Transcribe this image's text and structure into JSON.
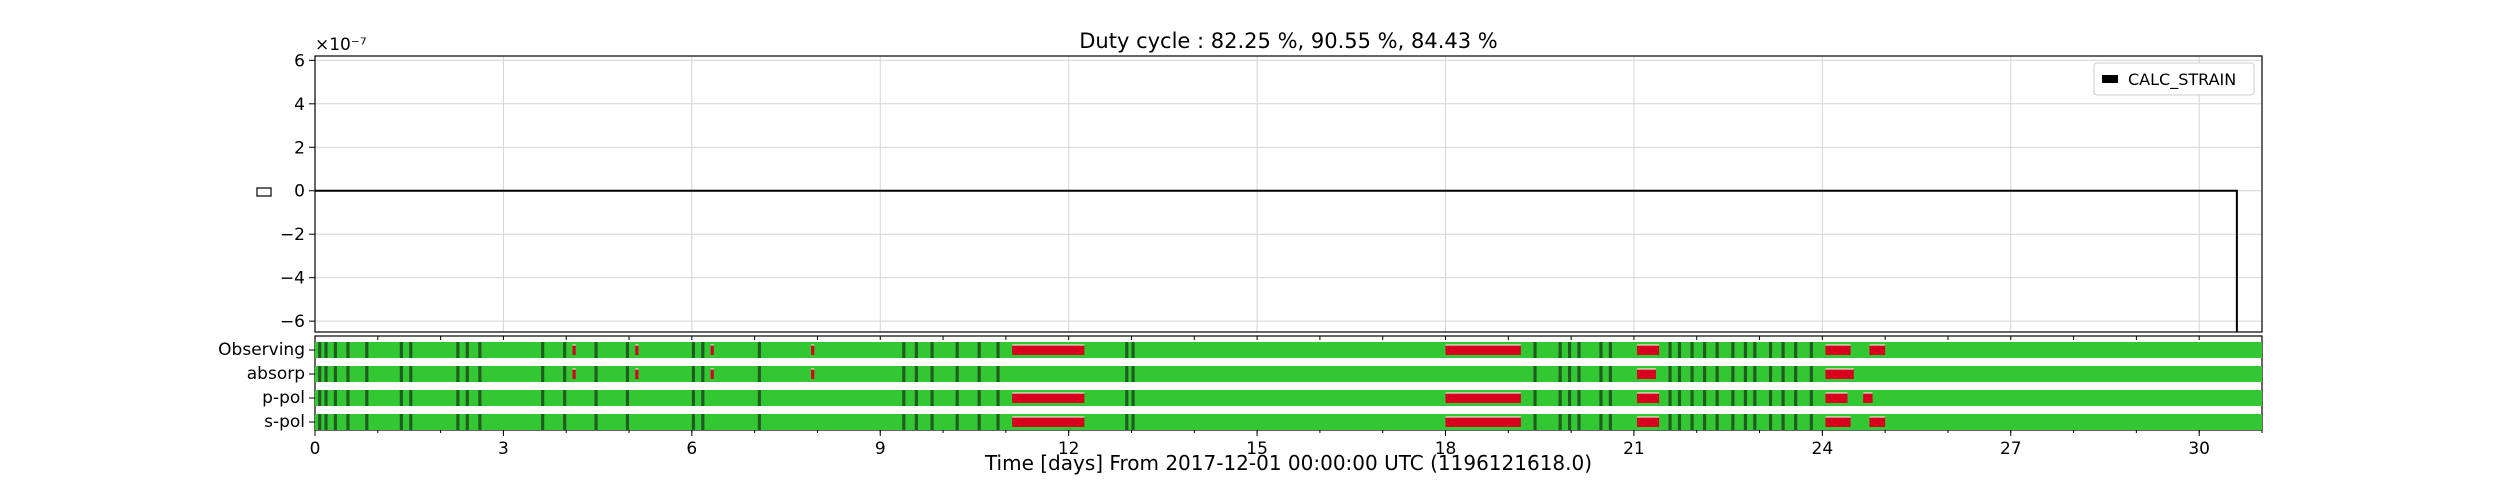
{
  "chart_data": {
    "type": "line",
    "title": "Duty cycle : 82.25 %, 90.55 %, 84.43 %",
    "xlabel": "Time [days] From 2017-12-01 00:00:00 UTC (1196121618.0)",
    "ylabel": "",
    "y_multiplier": "×10⁻⁷",
    "xlim": [
      0,
      31
    ],
    "ylim": [
      -6.5,
      6.2
    ],
    "x_ticks": [
      0,
      3,
      6,
      9,
      12,
      15,
      18,
      21,
      24,
      27,
      30
    ],
    "y_ticks": [
      -6,
      -4,
      -2,
      0,
      2,
      4,
      6
    ],
    "y_tick_labels": [
      "−6",
      "−4",
      "−2",
      "0",
      "2",
      "4",
      "6"
    ],
    "grid": true,
    "legend": {
      "placement": "top-right",
      "entries": [
        "CALC_STRAIN"
      ]
    },
    "series": [
      {
        "name": "CALC_STRAIN",
        "color": "#000000",
        "x": [
          0,
          30.6,
          30.6
        ],
        "y": [
          0,
          0,
          -6.5
        ]
      }
    ],
    "segment_rows": [
      {
        "label": "Observing",
        "bad": [
          [
            4.1,
            4.15
          ],
          [
            5.1,
            5.15
          ],
          [
            6.3,
            6.35
          ],
          [
            7.9,
            7.95
          ],
          [
            11.1,
            12.25
          ],
          [
            18.0,
            19.2
          ],
          [
            21.05,
            21.4
          ],
          [
            24.05,
            24.45
          ],
          [
            24.75,
            25.0
          ]
        ]
      },
      {
        "label": "absorp",
        "bad": [
          [
            4.1,
            4.15
          ],
          [
            5.1,
            5.15
          ],
          [
            6.3,
            6.35
          ],
          [
            7.9,
            7.95
          ],
          [
            21.05,
            21.35
          ],
          [
            24.05,
            24.5
          ]
        ]
      },
      {
        "label": "p-pol",
        "bad": [
          [
            11.1,
            12.25
          ],
          [
            18.0,
            19.2
          ],
          [
            21.05,
            21.4
          ],
          [
            24.05,
            24.4
          ],
          [
            24.65,
            24.8
          ]
        ]
      },
      {
        "label": "s-pol",
        "bad": [
          [
            11.1,
            12.25
          ],
          [
            18.0,
            19.2
          ],
          [
            21.05,
            21.4
          ],
          [
            24.05,
            24.45
          ],
          [
            24.75,
            25.0
          ]
        ]
      }
    ],
    "observed_gaps": [
      0.05,
      0.15,
      0.3,
      0.5,
      0.8,
      1.35,
      1.5,
      2.25,
      2.4,
      2.6,
      3.6,
      3.95,
      4.45,
      4.95,
      6.0,
      6.15,
      7.05,
      9.35,
      9.55,
      9.8,
      10.2,
      10.55,
      10.85,
      12.9,
      13.0,
      19.4,
      19.8,
      19.95,
      20.1,
      20.45,
      20.6,
      21.55,
      21.7,
      21.9,
      22.1,
      22.3,
      22.55,
      22.75,
      22.9,
      23.15,
      23.35,
      23.55,
      23.8
    ],
    "colors": {
      "good": "#33c733",
      "bad": "#d9001f",
      "observed": "#1f5c1f",
      "line": "#000000",
      "grid": "#d6d6d6"
    }
  }
}
